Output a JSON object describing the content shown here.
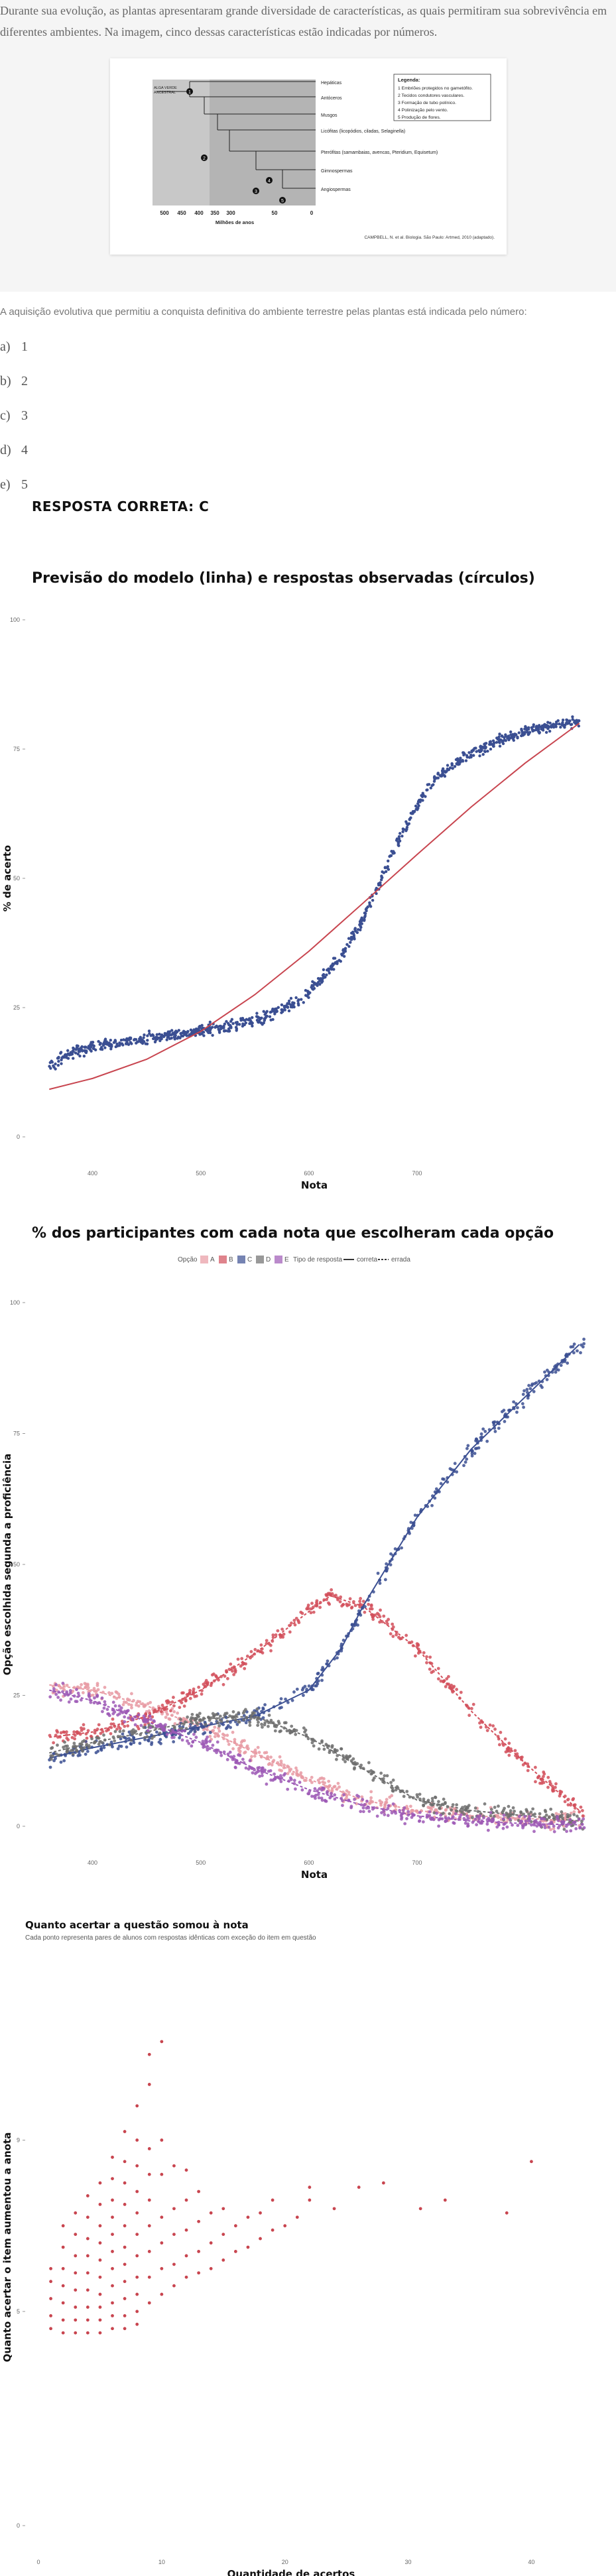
{
  "question": {
    "intro": "Durante sua evolução, as plantas apresentaram grande diversidade de características, as quais permitiram sua sobrevivência em diferentes ambientes. Na imagem, cinco dessas características estão indicadas por números.",
    "figure": {
      "groups": [
        "Hepáticas",
        "Antóceros",
        "Musgos",
        "Licófitas (licopódios, ciladas, Selaginella)",
        "Pterófitas (samambaias, avencas, Pteridium, Equisetum)",
        "Gimnospermas",
        "Angiospermas"
      ],
      "ancestor_label": "ALGA VERDE ANCESTRAL",
      "legend_title": "Legenda:",
      "legend_items": [
        "1  Embriões protegidos no gametófito.",
        "2  Tecidos condutores vasculares.",
        "3  Formação de tubo polínico.",
        "4  Polinização pelo vento.",
        "5  Produção de flores."
      ],
      "axis_ticks": [
        "500",
        "450",
        "400",
        "350",
        "300",
        "50",
        "0"
      ],
      "axis_label": "Milhões de anos",
      "source": "CAMPBELL, N. et al. Biologia. São Paulo: Artmed, 2010 (adaptado)."
    },
    "prompt": "A aquisição evolutiva que permitiu a conquista definitiva do ambiente terrestre pelas plantas está indicada pelo número:",
    "options": [
      {
        "letter": "a)",
        "text": "1"
      },
      {
        "letter": "b)",
        "text": "2"
      },
      {
        "letter": "c)",
        "text": "3"
      },
      {
        "letter": "d)",
        "text": "4"
      },
      {
        "letter": "e)",
        "text": "5"
      }
    ],
    "answer": "RESPOSTA CORRETA: C"
  },
  "chart_data": [
    {
      "type": "scatter",
      "title": "Previsão do modelo (linha) e respostas observadas (círculos)",
      "xlabel": "Nota",
      "ylabel": "% de acerto",
      "xlim": [
        350,
        860
      ],
      "ylim": [
        0,
        100
      ],
      "xticks": [
        400,
        500,
        600,
        700
      ],
      "yticks": [
        0,
        25,
        50,
        75,
        100
      ],
      "point_color": "#3b4f92",
      "line_color": "#c8454f",
      "model_line": {
        "x": [
          360,
          400,
          450,
          500,
          550,
          600,
          650,
          700,
          750,
          800,
          850
        ],
        "y": [
          9.2,
          11.3,
          15.0,
          20.4,
          27.5,
          35.9,
          45.2,
          54.6,
          63.8,
          72.3,
          80.0
        ]
      },
      "observed": {
        "x": [
          360,
          380,
          400,
          450,
          500,
          550,
          580,
          600,
          630,
          650,
          680,
          700,
          720,
          750,
          780,
          800,
          840
        ],
        "y": [
          13.5,
          16.0,
          17.5,
          19.0,
          20.5,
          22.5,
          25.0,
          28.0,
          35.0,
          42.0,
          56.0,
          64.0,
          70.0,
          74.0,
          77.0,
          78.5,
          80.0
        ]
      }
    },
    {
      "type": "scatter",
      "title": "% dos participantes com cada nota que escolheram cada opção",
      "xlabel": "Nota",
      "ylabel": "Opção escolhida segunda a proficiência",
      "xlim": [
        350,
        860
      ],
      "ylim": [
        0,
        100
      ],
      "xticks": [
        400,
        500,
        600,
        700
      ],
      "yticks": [
        0,
        25,
        50,
        75,
        100
      ],
      "legend": {
        "option_label": "Opção",
        "type_label": "Tipo de resposta",
        "correct_label": "correta",
        "wrong_label": "errada"
      },
      "series": [
        {
          "name": "A",
          "color": "#e89aa3",
          "x": [
            360,
            400,
            450,
            500,
            550,
            600,
            650,
            700,
            750,
            800,
            850
          ],
          "y": [
            27.0,
            26.0,
            23.0,
            19.0,
            14.0,
            9.0,
            5.0,
            3.0,
            2.0,
            1.5,
            1.0
          ]
        },
        {
          "name": "B",
          "color": "#d24f5b",
          "x": [
            360,
            400,
            450,
            500,
            550,
            600,
            620,
            650,
            700,
            750,
            800,
            850
          ],
          "y": [
            17.0,
            18.0,
            21.0,
            26.0,
            33.0,
            41.0,
            44.0,
            42.0,
            34.0,
            22.0,
            12.0,
            3.0
          ]
        },
        {
          "name": "C",
          "color": "#3b4f92",
          "x": [
            360,
            400,
            450,
            500,
            550,
            600,
            630,
            650,
            700,
            750,
            800,
            850
          ],
          "y": [
            13.0,
            15.0,
            17.0,
            19.0,
            21.0,
            26.0,
            34.0,
            42.0,
            59.0,
            72.0,
            82.0,
            92.0
          ]
        },
        {
          "name": "D",
          "color": "#6d6d6d",
          "x": [
            360,
            400,
            450,
            500,
            550,
            600,
            650,
            700,
            750,
            800,
            850
          ],
          "y": [
            14.0,
            16.0,
            18.0,
            20.5,
            21.0,
            17.0,
            11.0,
            5.0,
            3.0,
            2.0,
            1.0
          ]
        },
        {
          "name": "E",
          "color": "#9c58b5",
          "x": [
            360,
            400,
            450,
            500,
            550,
            600,
            650,
            700,
            750,
            800,
            850
          ],
          "y": [
            26.0,
            24.0,
            20.0,
            16.0,
            11.0,
            7.0,
            4.0,
            2.0,
            1.0,
            0.5,
            0.3
          ]
        }
      ]
    },
    {
      "type": "scatter",
      "title": "Quanto acertar a questão somou à nota",
      "subtitle": "Cada ponto representa pares de alunos com respostas idênticas com exceção do item em questão",
      "xlabel": "Quantidade de acertos",
      "ylabel": "Quanto acertar o item aumentou a anota",
      "xlim": [
        0,
        41
      ],
      "ylim": [
        0,
        13
      ],
      "xticks": [
        0,
        10,
        20,
        30,
        40
      ],
      "yticks": [
        0,
        5,
        9
      ],
      "point_color": "#c8454f",
      "points": {
        "x": [
          1,
          1,
          1,
          1,
          1,
          2,
          2,
          2,
          2,
          2,
          2,
          2,
          3,
          3,
          3,
          3,
          3,
          3,
          3,
          3,
          4,
          4,
          4,
          4,
          4,
          4,
          4,
          4,
          4,
          5,
          5,
          5,
          5,
          5,
          5,
          5,
          5,
          5,
          5,
          6,
          6,
          6,
          6,
          6,
          6,
          6,
          6,
          6,
          6,
          6,
          7,
          7,
          7,
          7,
          7,
          7,
          7,
          7,
          7,
          7,
          7,
          8,
          8,
          8,
          8,
          8,
          8,
          8,
          8,
          8,
          8,
          8,
          9,
          9,
          9,
          9,
          9,
          9,
          9,
          9,
          9,
          10,
          10,
          10,
          10,
          10,
          10,
          10,
          11,
          11,
          11,
          11,
          11,
          12,
          12,
          12,
          12,
          12,
          13,
          13,
          13,
          13,
          14,
          14,
          14,
          15,
          15,
          15,
          16,
          16,
          17,
          17,
          18,
          18,
          19,
          19,
          20,
          21,
          22,
          22,
          24,
          26,
          28,
          31,
          33,
          38,
          40
        ],
        "y": [
          4.6,
          4.9,
          5.3,
          5.7,
          6.0,
          4.5,
          4.8,
          5.2,
          5.6,
          6.0,
          6.5,
          7.0,
          4.5,
          4.8,
          5.1,
          5.5,
          5.9,
          6.3,
          6.8,
          7.3,
          4.5,
          4.8,
          5.1,
          5.5,
          5.9,
          6.3,
          6.7,
          7.2,
          7.7,
          4.5,
          4.8,
          5.1,
          5.4,
          5.8,
          6.2,
          6.6,
          7.0,
          7.5,
          8.0,
          4.6,
          4.9,
          5.2,
          5.6,
          6.0,
          6.4,
          6.8,
          7.2,
          7.6,
          8.1,
          8.6,
          4.6,
          4.9,
          5.3,
          5.7,
          6.1,
          6.5,
          7.0,
          7.5,
          8.0,
          8.5,
          9.2,
          4.7,
          5.0,
          5.4,
          5.8,
          6.3,
          6.8,
          7.3,
          7.8,
          8.4,
          9.0,
          9.8,
          5.2,
          5.8,
          6.4,
          7.0,
          7.6,
          8.2,
          8.8,
          10.3,
          11.0,
          5.4,
          6.0,
          6.6,
          7.2,
          8.2,
          9.0,
          11.3,
          5.6,
          6.1,
          6.8,
          7.4,
          8.4,
          5.8,
          6.3,
          6.9,
          7.6,
          8.3,
          5.9,
          6.4,
          7.1,
          7.8,
          6.0,
          6.6,
          7.3,
          6.2,
          6.8,
          7.4,
          6.4,
          7.0,
          6.5,
          7.2,
          6.7,
          7.3,
          6.9,
          7.6,
          7.0,
          7.2,
          7.6,
          7.9,
          7.4,
          7.9,
          8.0,
          7.4,
          7.6,
          7.3,
          8.5
        ]
      }
    }
  ]
}
